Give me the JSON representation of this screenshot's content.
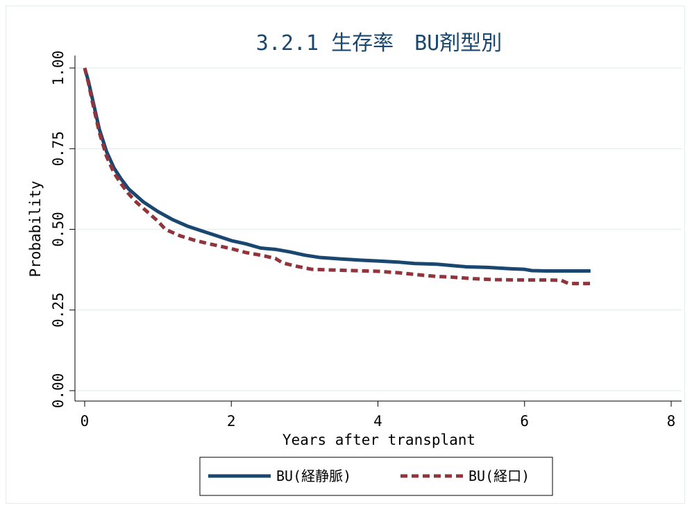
{
  "chart_data": {
    "type": "line",
    "title": "3.2.1 生存率　BU剤型別",
    "xlabel": "Years after transplant",
    "ylabel": "Probability",
    "xlim": [
      0,
      8
    ],
    "ylim": [
      0,
      1
    ],
    "x_ticks": [
      0,
      2,
      4,
      6,
      8
    ],
    "y_ticks": [
      0,
      0.25,
      0.5,
      0.75,
      1
    ],
    "x_tick_labels": [
      "0",
      "2",
      "4",
      "6",
      "8"
    ],
    "y_tick_labels": [
      "0.00",
      "0.25",
      "0.50",
      "0.75",
      "1.00"
    ],
    "grid": "horizontal",
    "legend_position": "bottom",
    "series": [
      {
        "name": "BU(経静脈)",
        "color": "#1a476f",
        "style": "solid",
        "x": [
          0,
          0.05,
          0.1,
          0.15,
          0.2,
          0.3,
          0.4,
          0.5,
          0.6,
          0.7,
          0.8,
          0.9,
          1.0,
          1.2,
          1.4,
          1.6,
          1.8,
          2.0,
          2.2,
          2.4,
          2.6,
          2.8,
          3.0,
          3.2,
          3.5,
          3.8,
          4.0,
          4.3,
          4.5,
          4.8,
          5.0,
          5.2,
          5.5,
          5.8,
          6.0,
          6.1,
          6.3,
          6.6,
          6.9
        ],
        "y": [
          1.0,
          0.96,
          0.91,
          0.86,
          0.81,
          0.74,
          0.69,
          0.655,
          0.625,
          0.605,
          0.585,
          0.57,
          0.555,
          0.53,
          0.51,
          0.495,
          0.48,
          0.465,
          0.455,
          0.442,
          0.438,
          0.43,
          0.42,
          0.413,
          0.408,
          0.404,
          0.402,
          0.398,
          0.394,
          0.392,
          0.388,
          0.384,
          0.382,
          0.378,
          0.376,
          0.372,
          0.371,
          0.371,
          0.371
        ]
      },
      {
        "name": "BU(経口)",
        "color": "#90353b",
        "style": "dashed",
        "x": [
          0,
          0.05,
          0.1,
          0.15,
          0.2,
          0.3,
          0.4,
          0.5,
          0.6,
          0.7,
          0.8,
          0.9,
          1.0,
          1.1,
          1.3,
          1.5,
          1.7,
          2.0,
          2.2,
          2.4,
          2.6,
          2.7,
          2.9,
          3.1,
          3.5,
          4.0,
          4.3,
          4.6,
          4.8,
          5.0,
          5.3,
          5.6,
          6.0,
          6.3,
          6.5,
          6.6,
          6.9
        ],
        "y": [
          1.0,
          0.955,
          0.9,
          0.85,
          0.8,
          0.725,
          0.675,
          0.64,
          0.61,
          0.585,
          0.565,
          0.545,
          0.525,
          0.5,
          0.48,
          0.466,
          0.455,
          0.44,
          0.428,
          0.42,
          0.41,
          0.396,
          0.385,
          0.376,
          0.373,
          0.37,
          0.365,
          0.358,
          0.354,
          0.352,
          0.347,
          0.344,
          0.343,
          0.343,
          0.342,
          0.332,
          0.332
        ]
      }
    ]
  }
}
